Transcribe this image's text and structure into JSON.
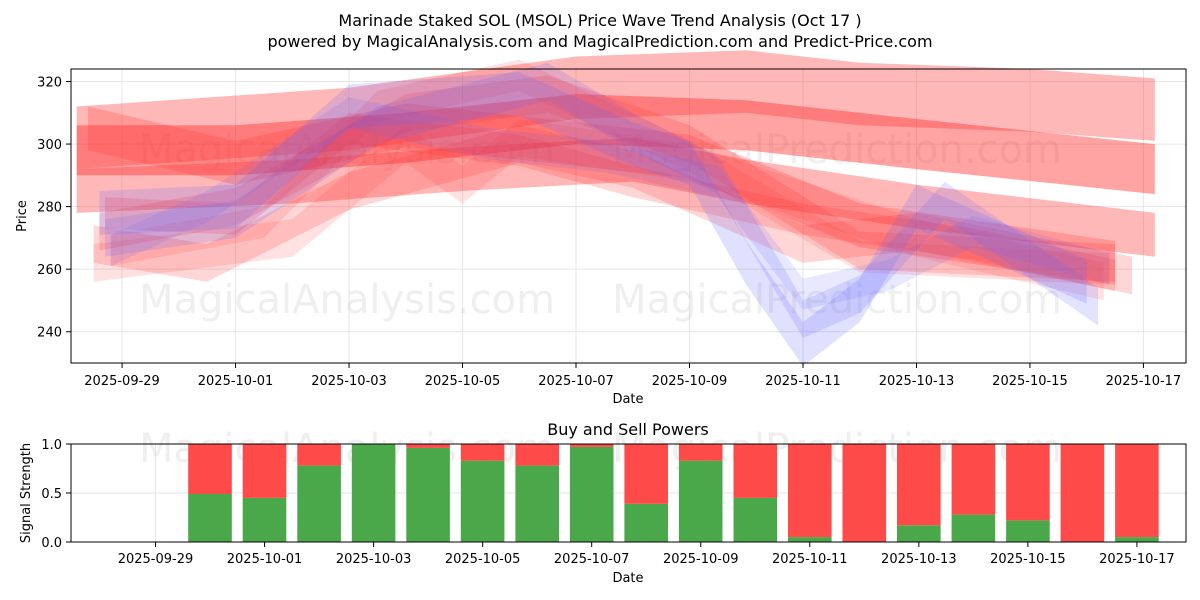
{
  "title": "Marinade Staked SOL (MSOL) Price Wave Trend Analysis (Oct 17 )",
  "subtitle": "powered by MagicalAnalysis.com and MagicalPrediction.com and Predict-Price.com",
  "watermarks": [
    "MagicalAnalysis.com",
    "MagicalPrediction.com"
  ],
  "chart_data": [
    {
      "type": "area",
      "name": "price-wave-trend",
      "xlabel": "Date",
      "ylabel": "Price",
      "ylim": [
        230,
        324
      ],
      "xlim": [
        "2025-09-28.4",
        "2025-10-17.8"
      ],
      "x_ticks": [
        "2025-09-29",
        "2025-10-01",
        "2025-10-03",
        "2025-10-05",
        "2025-10-07",
        "2025-10-09",
        "2025-10-11",
        "2025-10-13",
        "2025-10-15",
        "2025-10-17"
      ],
      "y_ticks": [
        240,
        260,
        280,
        300,
        320
      ],
      "colors": {
        "red_band": "#ff3333",
        "blue_band": "#6666ff"
      },
      "series": [
        {
          "name": "red-wave-1",
          "color": "red",
          "width": 20,
          "opacity": 0.35,
          "x": [
            -0.8,
            4,
            8,
            11,
            13,
            16,
            18.2
          ],
          "y": [
            302,
            308,
            318,
            320,
            316,
            314,
            311
          ]
        },
        {
          "name": "red-wave-2",
          "color": "red",
          "width": 16,
          "opacity": 0.45,
          "x": [
            -0.8,
            2,
            5,
            8,
            11,
            14,
            18.2
          ],
          "y": [
            298,
            298,
            302,
            308,
            306,
            300,
            292
          ]
        },
        {
          "name": "red-wave-3",
          "color": "red",
          "width": 14,
          "opacity": 0.35,
          "x": [
            -0.8,
            3,
            6,
            9,
            11,
            14,
            18.2
          ],
          "y": [
            285,
            288,
            292,
            295,
            288,
            280,
            271
          ]
        },
        {
          "name": "red-wave-4",
          "color": "red",
          "width": 14,
          "opacity": 0.25,
          "x": [
            -0.6,
            2,
            5,
            8,
            10,
            13,
            17.5
          ],
          "y": [
            305,
            294,
            306,
            300,
            296,
            274,
            262
          ]
        },
        {
          "name": "red-wave-5",
          "color": "red",
          "width": 12,
          "opacity": 0.2,
          "x": [
            -0.5,
            1.5,
            4,
            7,
            9,
            12,
            14,
            17.8
          ],
          "y": [
            268,
            262,
            285,
            300,
            292,
            268,
            272,
            258
          ]
        },
        {
          "name": "red-wave-6",
          "color": "red",
          "width": 12,
          "opacity": 0.2,
          "x": [
            -0.4,
            2,
            5,
            7.5,
            10,
            13,
            17.5
          ],
          "y": [
            272,
            280,
            310,
            316,
            300,
            266,
            262
          ]
        },
        {
          "name": "red-wave-7",
          "color": "red",
          "width": 12,
          "opacity": 0.15,
          "x": [
            -0.5,
            3,
            5,
            6,
            7,
            10,
            14,
            17.3
          ],
          "y": [
            262,
            270,
            300,
            287,
            302,
            294,
            270,
            256
          ]
        },
        {
          "name": "red-wave-8",
          "color": "red",
          "width": 10,
          "opacity": 0.2,
          "x": [
            -0.3,
            2,
            4,
            7,
            9,
            12,
            15,
            17.5
          ],
          "y": [
            278,
            276,
            305,
            298,
            288,
            276,
            268,
            258
          ]
        },
        {
          "name": "red-wave-9",
          "color": "red",
          "width": 10,
          "opacity": 0.15,
          "x": [
            -0.2,
            2.5,
            4.5,
            7,
            10,
            13,
            17.4
          ],
          "y": [
            266,
            275,
            312,
            322,
            296,
            264,
            260
          ]
        },
        {
          "name": "blue-wave-1",
          "color": "blue",
          "width": 14,
          "opacity": 0.2,
          "x": [
            -0.4,
            2,
            4,
            7,
            9,
            10,
            11,
            12,
            13,
            14,
            17
          ],
          "y": [
            278,
            280,
            312,
            316,
            300,
            294,
            262,
            236,
            250,
            280,
            256
          ]
        },
        {
          "name": "blue-wave-2",
          "color": "blue",
          "width": 12,
          "opacity": 0.18,
          "x": [
            -0.3,
            2,
            4.5,
            7.5,
            9,
            10.5,
            12,
            13,
            14.5,
            17.2
          ],
          "y": [
            270,
            276,
            306,
            320,
            304,
            290,
            244,
            252,
            282,
            248
          ]
        },
        {
          "name": "blue-wave-3",
          "color": "blue",
          "width": 10,
          "opacity": 0.15,
          "x": [
            -0.2,
            1.5,
            4,
            6.5,
            8.5,
            10.5,
            12,
            13.5,
            15,
            17.4
          ],
          "y": [
            266,
            280,
            310,
            300,
            296,
            288,
            252,
            258,
            272,
            260
          ]
        }
      ]
    },
    {
      "type": "bar",
      "name": "buy-sell-powers",
      "title": "Buy and Sell Powers",
      "xlabel": "Date",
      "ylabel": "Signal Strength",
      "ylim": [
        0,
        1
      ],
      "y_ticks": [
        "0.0",
        "0.5",
        "1.0"
      ],
      "x_ticks": [
        "2025-09-29",
        "2025-10-01",
        "2025-10-03",
        "2025-10-05",
        "2025-10-07",
        "2025-10-09",
        "2025-10-11",
        "2025-10-13",
        "2025-10-15",
        "2025-10-17"
      ],
      "colors": {
        "buy": "#4aa84a",
        "sell": "#ff4a4a"
      },
      "categories": [
        "2025-09-30",
        "2025-10-01",
        "2025-10-02",
        "2025-10-03",
        "2025-10-04",
        "2025-10-05",
        "2025-10-06",
        "2025-10-07",
        "2025-10-08",
        "2025-10-09",
        "2025-10-10",
        "2025-10-11",
        "2025-10-12",
        "2025-10-13",
        "2025-10-14",
        "2025-10-15",
        "2025-10-16",
        "2025-10-17"
      ],
      "series": [
        {
          "name": "Buy",
          "values": [
            0.49,
            0.45,
            0.78,
            1.0,
            0.96,
            0.83,
            0.78,
            0.97,
            0.39,
            0.83,
            0.45,
            0.05,
            0.0,
            0.17,
            0.28,
            0.22,
            0.0,
            0.05
          ]
        },
        {
          "name": "Sell",
          "values": [
            0.51,
            0.55,
            0.22,
            0.0,
            0.04,
            0.17,
            0.22,
            0.03,
            0.61,
            0.17,
            0.55,
            0.95,
            1.0,
            0.83,
            0.72,
            0.78,
            1.0,
            0.95
          ]
        }
      ]
    }
  ]
}
